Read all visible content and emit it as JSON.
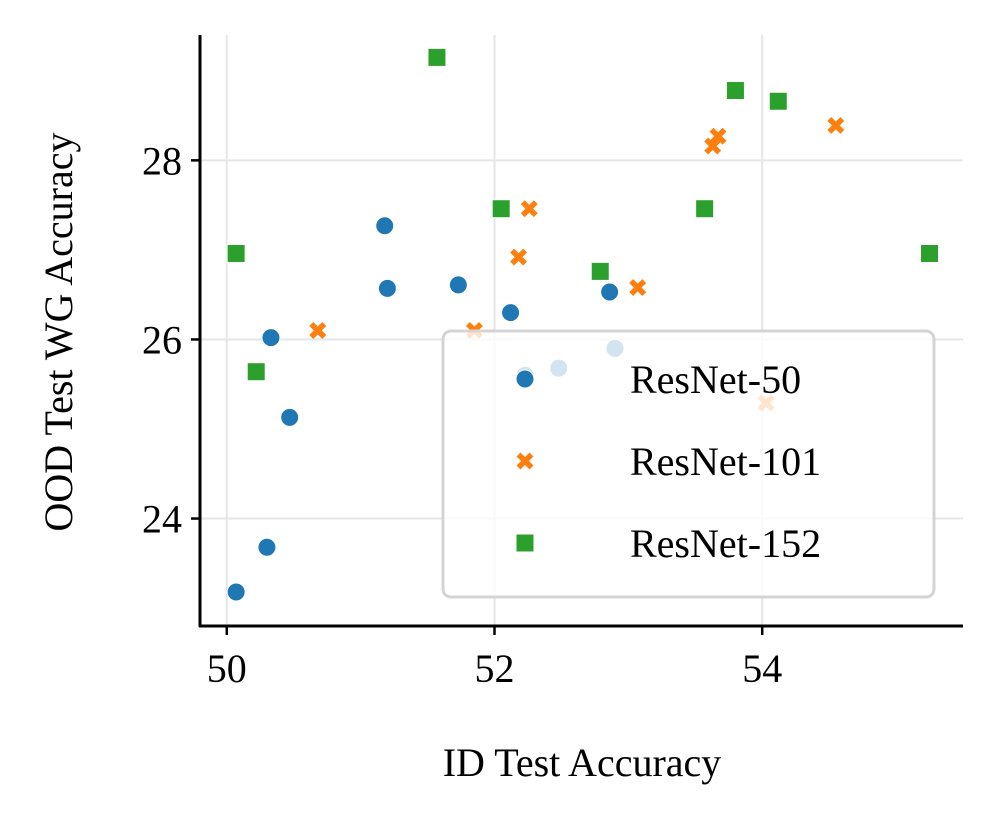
{
  "chart_data": {
    "type": "scatter",
    "title": "",
    "xlabel": "ID Test Accuracy",
    "ylabel": "OOD Test WG Accuracy",
    "xlim": [
      49.8,
      55.5
    ],
    "ylim": [
      22.8,
      29.4
    ],
    "xticks": [
      50,
      52,
      54
    ],
    "yticks": [
      24,
      26,
      28
    ],
    "grid": true,
    "legend_position": "lower-right",
    "series": [
      {
        "name": "ResNet-50",
        "marker": "circle",
        "color": "#1f77b4",
        "points": [
          {
            "x": 50.07,
            "y": 23.18
          },
          {
            "x": 50.3,
            "y": 23.68
          },
          {
            "x": 50.47,
            "y": 25.13
          },
          {
            "x": 50.33,
            "y": 26.02
          },
          {
            "x": 51.18,
            "y": 27.27
          },
          {
            "x": 51.2,
            "y": 26.57
          },
          {
            "x": 51.73,
            "y": 26.61
          },
          {
            "x": 52.12,
            "y": 26.3
          },
          {
            "x": 52.23,
            "y": 25.6
          },
          {
            "x": 52.48,
            "y": 25.68
          },
          {
            "x": 52.86,
            "y": 26.53
          },
          {
            "x": 52.9,
            "y": 25.9
          }
        ]
      },
      {
        "name": "ResNet-101",
        "marker": "x",
        "color": "#ff7f0e",
        "points": [
          {
            "x": 50.68,
            "y": 26.1
          },
          {
            "x": 51.85,
            "y": 26.1
          },
          {
            "x": 52.18,
            "y": 26.92
          },
          {
            "x": 52.26,
            "y": 27.46
          },
          {
            "x": 53.07,
            "y": 26.58
          },
          {
            "x": 53.63,
            "y": 28.16
          },
          {
            "x": 53.67,
            "y": 28.27
          },
          {
            "x": 54.03,
            "y": 25.29
          },
          {
            "x": 54.55,
            "y": 28.39
          }
        ]
      },
      {
        "name": "ResNet-152",
        "marker": "square",
        "color": "#2ca02c",
        "points": [
          {
            "x": 50.07,
            "y": 26.96
          },
          {
            "x": 50.22,
            "y": 25.64
          },
          {
            "x": 51.57,
            "y": 29.15
          },
          {
            "x": 52.05,
            "y": 27.46
          },
          {
            "x": 52.79,
            "y": 26.76
          },
          {
            "x": 53.57,
            "y": 27.46
          },
          {
            "x": 53.8,
            "y": 28.78
          },
          {
            "x": 54.12,
            "y": 28.66
          },
          {
            "x": 55.25,
            "y": 26.96
          }
        ]
      }
    ]
  }
}
